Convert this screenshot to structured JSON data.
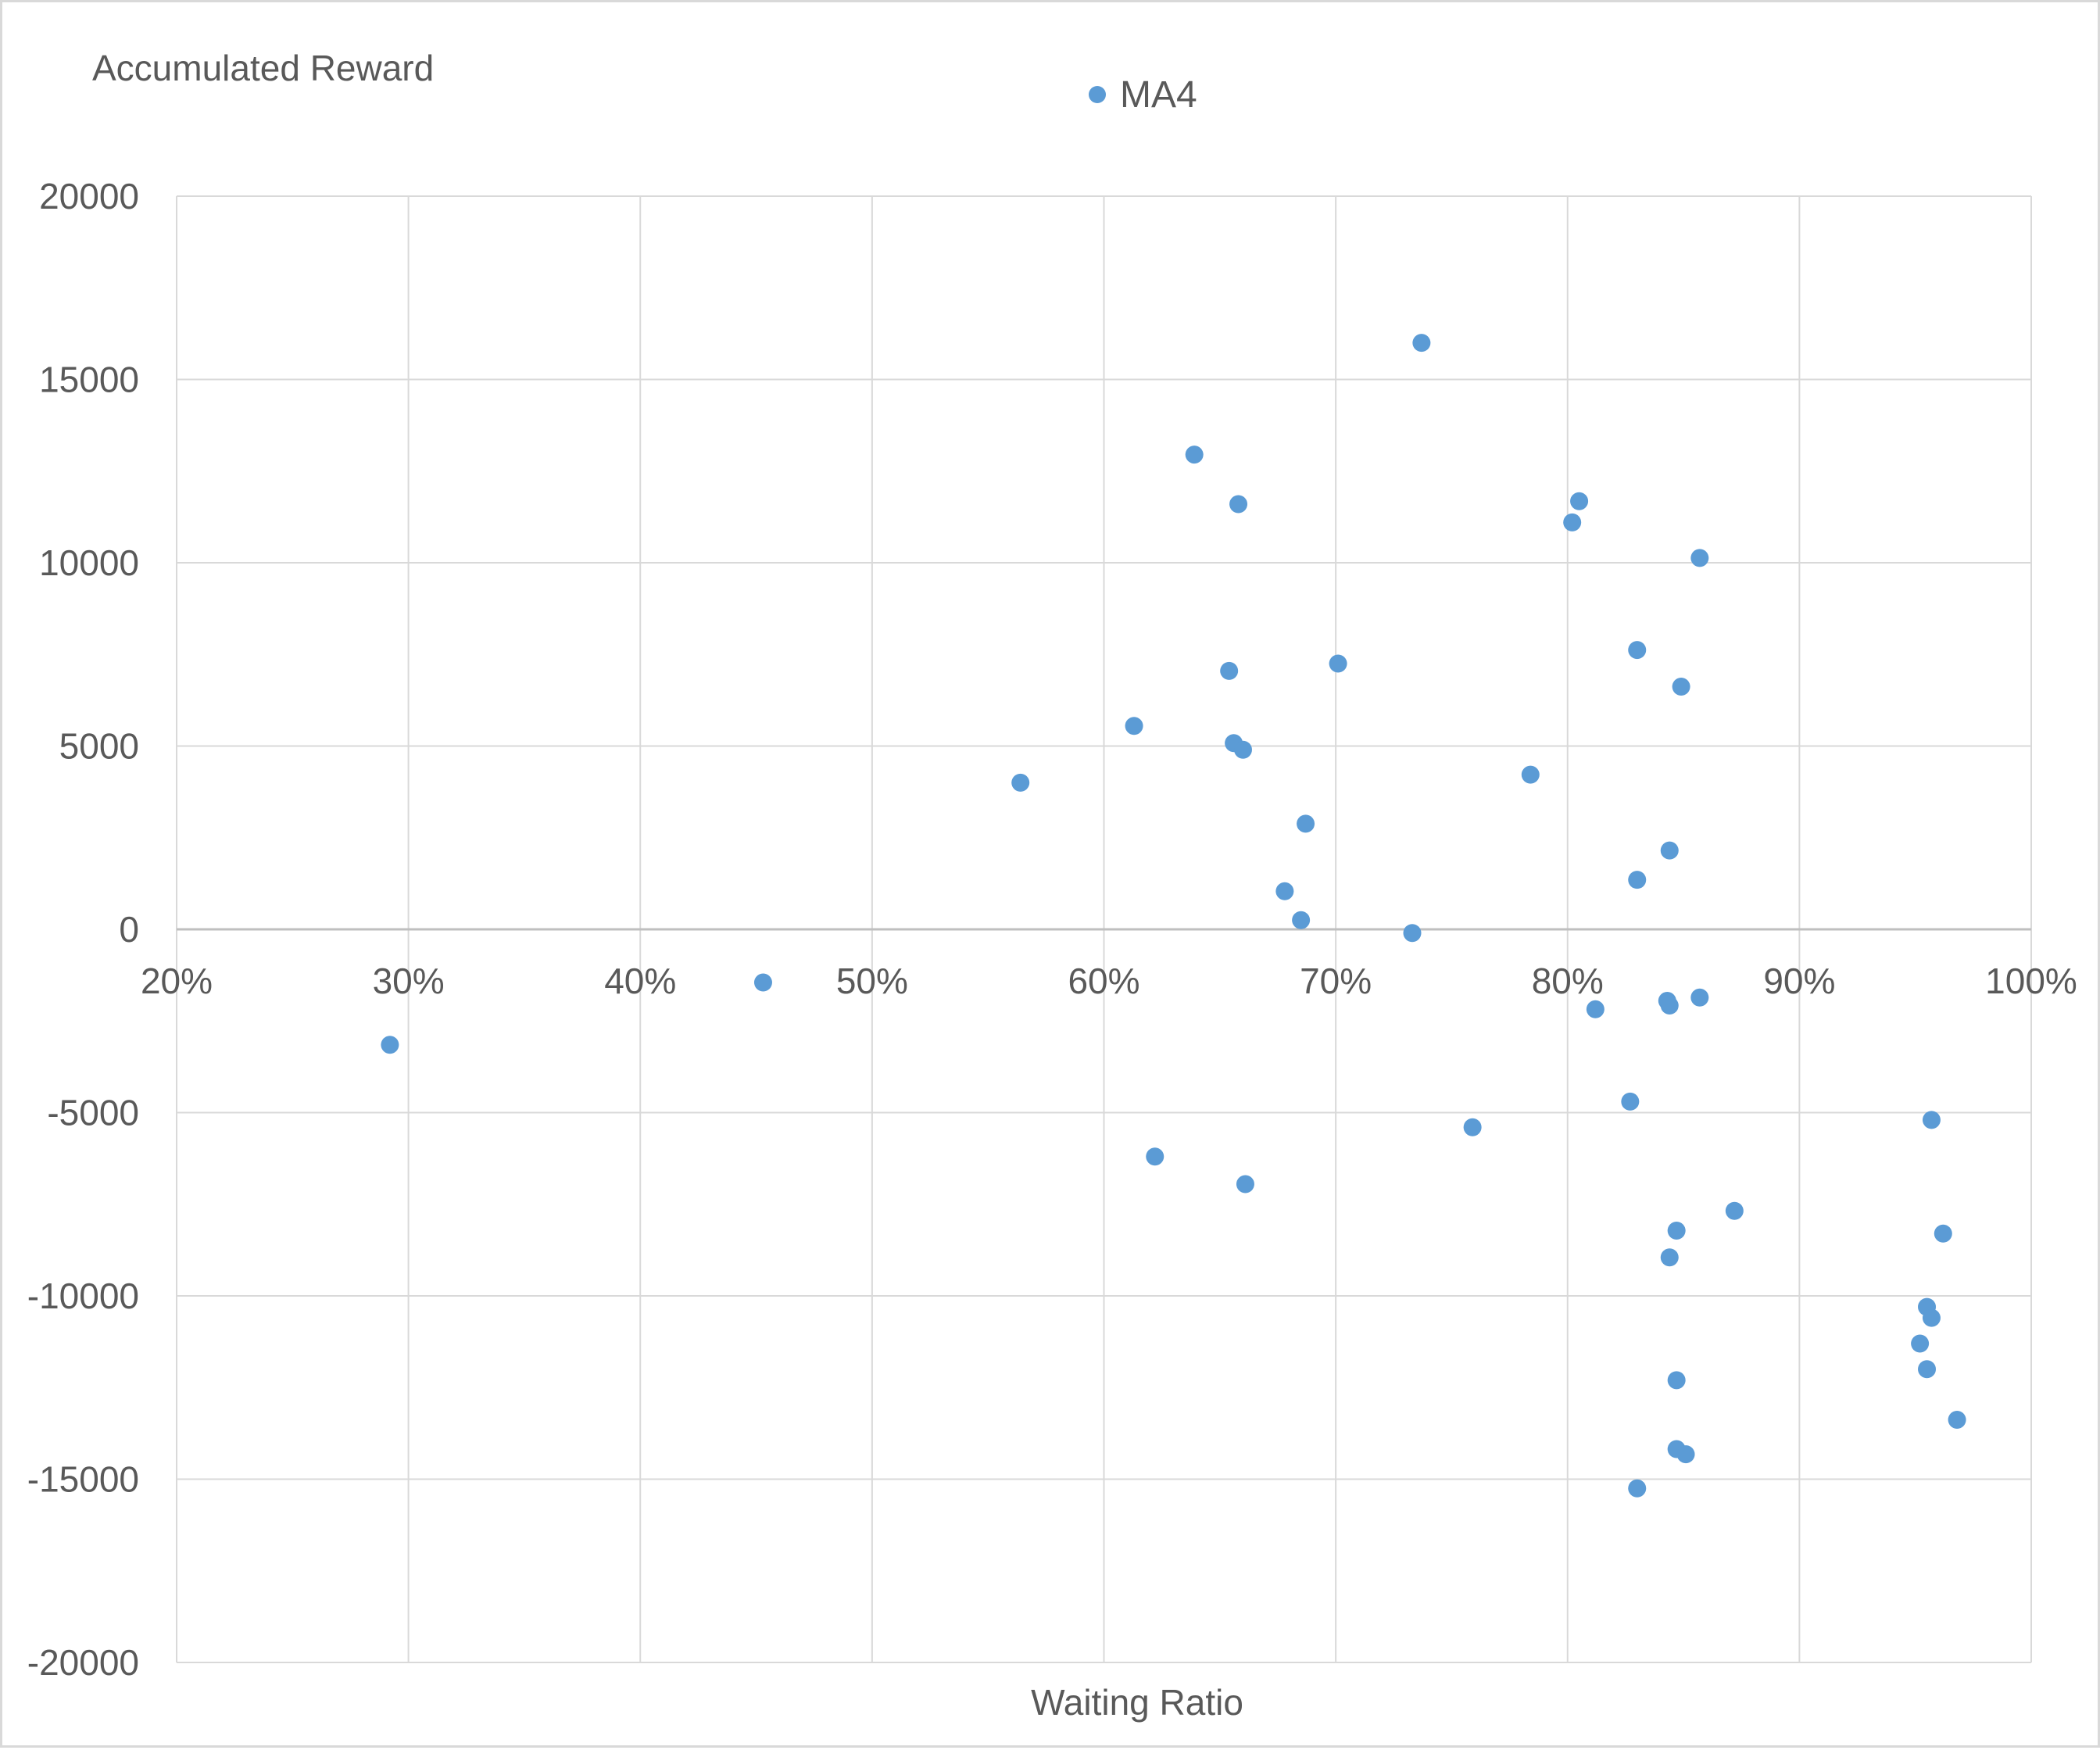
{
  "chart_data": {
    "type": "scatter",
    "title": "",
    "xlabel": "Waiting Ratio",
    "ylabel": "Accumulated Reward",
    "xlim": [
      0.2,
      1.0
    ],
    "ylim": [
      -20000,
      20000
    ],
    "x_ticks": [
      0.2,
      0.3,
      0.4,
      0.5,
      0.6,
      0.7,
      0.8,
      0.9,
      1.0
    ],
    "x_tick_labels": [
      "20%",
      "30%",
      "40%",
      "50%",
      "60%",
      "70%",
      "80%",
      "90%",
      "100%"
    ],
    "y_ticks": [
      20000,
      15000,
      10000,
      5000,
      0,
      -5000,
      -10000,
      -15000,
      -20000
    ],
    "y_tick_labels": [
      "20000",
      "15000",
      "10000",
      "5000",
      "0",
      "-5000",
      "-10000",
      "-15000",
      "-20000"
    ],
    "grid": true,
    "legend_position": "top-center",
    "series": [
      {
        "name": "MA4",
        "color": "#5b9bd5",
        "points": [
          [
            0.292,
            -3150
          ],
          [
            0.453,
            -1450
          ],
          [
            0.564,
            4000
          ],
          [
            0.613,
            5550
          ],
          [
            0.622,
            -6200
          ],
          [
            0.639,
            12950
          ],
          [
            0.654,
            7050
          ],
          [
            0.656,
            5080
          ],
          [
            0.658,
            11600
          ],
          [
            0.66,
            4900
          ],
          [
            0.661,
            -6950
          ],
          [
            0.678,
            1040
          ],
          [
            0.685,
            250
          ],
          [
            0.687,
            2880
          ],
          [
            0.701,
            7250
          ],
          [
            0.733,
            -100
          ],
          [
            0.737,
            16000
          ],
          [
            0.759,
            -5400
          ],
          [
            0.784,
            4220
          ],
          [
            0.802,
            11100
          ],
          [
            0.805,
            11680
          ],
          [
            0.812,
            -2180
          ],
          [
            0.827,
            -4700
          ],
          [
            0.83,
            7620
          ],
          [
            0.83,
            1350
          ],
          [
            0.83,
            -15250
          ],
          [
            0.843,
            -1950
          ],
          [
            0.844,
            2150
          ],
          [
            0.844,
            -2080
          ],
          [
            0.844,
            -8950
          ],
          [
            0.847,
            -8220
          ],
          [
            0.847,
            -12300
          ],
          [
            0.847,
            -14180
          ],
          [
            0.849,
            6620
          ],
          [
            0.851,
            -14320
          ],
          [
            0.857,
            10130
          ],
          [
            0.857,
            -1860
          ],
          [
            0.872,
            -7680
          ],
          [
            0.952,
            -11300
          ],
          [
            0.955,
            -10300
          ],
          [
            0.955,
            -12000
          ],
          [
            0.957,
            -5200
          ],
          [
            0.957,
            -10600
          ],
          [
            0.962,
            -8300
          ],
          [
            0.968,
            -13380
          ]
        ]
      }
    ]
  }
}
